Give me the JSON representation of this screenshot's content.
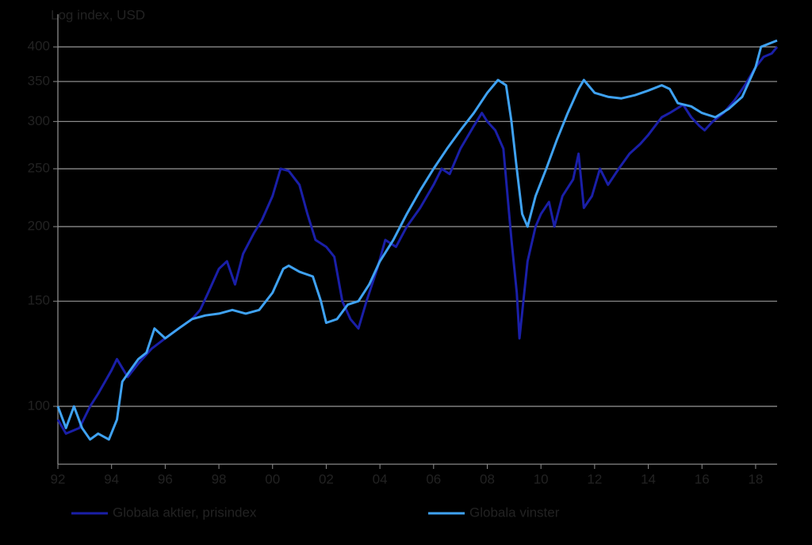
{
  "chart_data": {
    "type": "line",
    "title": "Log index, USD",
    "log_scale": true,
    "grid": true,
    "xlim": [
      1992,
      2018.8
    ],
    "ylim": [
      80,
      440
    ],
    "xticks": [
      {
        "value": 1992,
        "label": "92"
      },
      {
        "value": 1994,
        "label": "94"
      },
      {
        "value": 1996,
        "label": "96"
      },
      {
        "value": 1998,
        "label": "98"
      },
      {
        "value": 2000,
        "label": "00"
      },
      {
        "value": 2002,
        "label": "02"
      },
      {
        "value": 2004,
        "label": "04"
      },
      {
        "value": 2006,
        "label": "06"
      },
      {
        "value": 2008,
        "label": "08"
      },
      {
        "value": 2010,
        "label": "10"
      },
      {
        "value": 2012,
        "label": "12"
      },
      {
        "value": 2014,
        "label": "14"
      },
      {
        "value": 2016,
        "label": "16"
      },
      {
        "value": 2018,
        "label": "18"
      }
    ],
    "yticks": [
      100,
      150,
      200,
      250,
      300,
      350,
      400
    ],
    "series": [
      {
        "name": "Globala aktier, prisindex",
        "color": "#1a1fa8",
        "x": [
          1992.0,
          1992.3,
          1992.8,
          1993.2,
          1993.5,
          1994.0,
          1994.2,
          1994.6,
          1995.0,
          1995.5,
          1996.0,
          1996.5,
          1997.0,
          1997.3,
          1997.6,
          1998.0,
          1998.3,
          1998.6,
          1998.9,
          1999.3,
          1999.6,
          2000.0,
          2000.3,
          2000.6,
          2001.0,
          2001.3,
          2001.6,
          2002.0,
          2002.3,
          2002.6,
          2002.9,
          2003.2,
          2003.5,
          2003.9,
          2004.2,
          2004.6,
          2005.0,
          2005.5,
          2006.0,
          2006.3,
          2006.6,
          2007.0,
          2007.5,
          2007.8,
          2008.0,
          2008.3,
          2008.6,
          2008.9,
          2009.1,
          2009.2,
          2009.5,
          2009.8,
          2010.0,
          2010.3,
          2010.5,
          2010.8,
          2011.2,
          2011.4,
          2011.6,
          2011.9,
          2012.2,
          2012.5,
          2012.9,
          2013.3,
          2013.7,
          2014.0,
          2014.5,
          2014.8,
          2015.3,
          2015.6,
          2015.9,
          2016.1,
          2016.4,
          2016.8,
          2017.2,
          2017.6,
          2018.0,
          2018.3,
          2018.6,
          2018.8
        ],
        "values": [
          95,
          90,
          92,
          100,
          105,
          115,
          120,
          112,
          118,
          125,
          130,
          135,
          140,
          145,
          155,
          170,
          175,
          160,
          180,
          195,
          205,
          225,
          250,
          248,
          235,
          210,
          190,
          185,
          178,
          150,
          140,
          135,
          150,
          170,
          190,
          185,
          200,
          215,
          235,
          250,
          245,
          270,
          295,
          310,
          300,
          290,
          270,
          190,
          155,
          130,
          175,
          200,
          210,
          220,
          200,
          225,
          240,
          265,
          215,
          225,
          250,
          235,
          250,
          265,
          275,
          285,
          305,
          310,
          320,
          305,
          295,
          290,
          300,
          310,
          325,
          345,
          370,
          385,
          390,
          400
        ]
      },
      {
        "name": "Globala vinster",
        "color": "#3fa2f2",
        "x": [
          1992.0,
          1992.3,
          1992.6,
          1992.9,
          1993.2,
          1993.5,
          1993.9,
          1994.2,
          1994.4,
          1994.7,
          1995.0,
          1995.3,
          1995.6,
          1996.0,
          1996.5,
          1997.0,
          1997.5,
          1998.0,
          1998.5,
          1999.0,
          1999.5,
          2000.0,
          2000.4,
          2000.6,
          2001.0,
          2001.5,
          2001.8,
          2002.0,
          2002.4,
          2002.8,
          2003.2,
          2003.6,
          2004.0,
          2004.5,
          2005.0,
          2005.5,
          2006.0,
          2006.5,
          2007.0,
          2007.5,
          2008.0,
          2008.4,
          2008.7,
          2008.9,
          2009.1,
          2009.3,
          2009.5,
          2009.8,
          2010.2,
          2010.6,
          2011.0,
          2011.4,
          2011.6,
          2012.0,
          2012.5,
          2013.0,
          2013.5,
          2014.0,
          2014.5,
          2014.8,
          2015.1,
          2015.6,
          2016.0,
          2016.5,
          2017.0,
          2017.5,
          2018.0,
          2018.2,
          2018.5,
          2018.8
        ],
        "values": [
          100,
          92,
          100,
          92,
          88,
          90,
          88,
          95,
          110,
          115,
          120,
          123,
          135,
          130,
          135,
          140,
          142,
          143,
          145,
          143,
          145,
          155,
          170,
          172,
          168,
          165,
          150,
          138,
          140,
          148,
          150,
          160,
          175,
          190,
          210,
          230,
          250,
          270,
          290,
          310,
          335,
          352,
          345,
          300,
          250,
          210,
          200,
          225,
          250,
          280,
          310,
          340,
          352,
          335,
          330,
          328,
          332,
          338,
          345,
          340,
          322,
          318,
          310,
          305,
          315,
          330,
          370,
          400,
          405,
          410
        ]
      }
    ]
  }
}
